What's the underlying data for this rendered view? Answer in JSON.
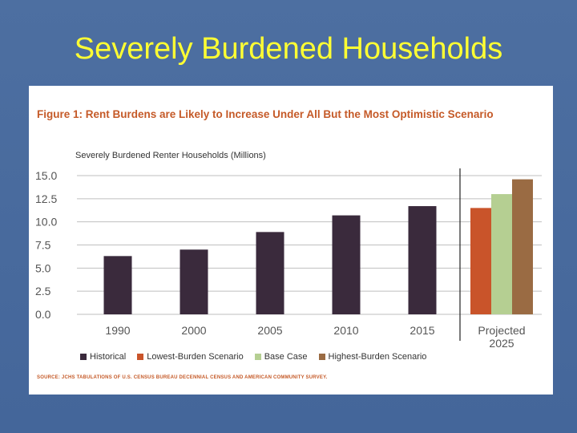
{
  "slide": {
    "title": "Severely Burdened Households"
  },
  "figure": {
    "title": "Figure 1: Rent Burdens are Likely to Increase Under All But the Most Optimistic Scenario",
    "source": "SOURCE: JCHS TABULATIONS OF U.S. CENSUS BUREAU DECENNIAL CENSUS AND AMERICAN COMMUNITY SURVEY."
  },
  "colors": {
    "historical": "#3a2a3c",
    "lowest": "#c9542a",
    "base": "#b5cf92",
    "highest": "#9a6b43"
  },
  "chart_data": {
    "type": "bar",
    "title": "Figure 1: Rent Burdens are Likely to Increase Under All But the Most Optimistic Scenario",
    "ylabel": "Severely Burdened Renter Households (Millions)",
    "xlabel": "",
    "ylim": [
      0,
      15
    ],
    "yticks": [
      "15.0",
      "12.5",
      "10.0",
      "7.5",
      "5.0",
      "2.5",
      "0.0"
    ],
    "categories": [
      "1990",
      "2000",
      "2005",
      "2010",
      "2015",
      "Projected 2025"
    ],
    "series": [
      {
        "name": "Historical",
        "values": [
          6.3,
          7.0,
          8.9,
          10.7,
          11.7,
          null
        ]
      },
      {
        "name": "Lowest-Burden Scenario",
        "values": [
          null,
          null,
          null,
          null,
          null,
          11.5
        ]
      },
      {
        "name": "Base Case",
        "values": [
          null,
          null,
          null,
          null,
          null,
          13.0
        ]
      },
      {
        "name": "Highest-Burden Scenario",
        "values": [
          null,
          null,
          null,
          null,
          null,
          14.6
        ]
      }
    ],
    "grid": true,
    "legend_position": "bottom"
  }
}
